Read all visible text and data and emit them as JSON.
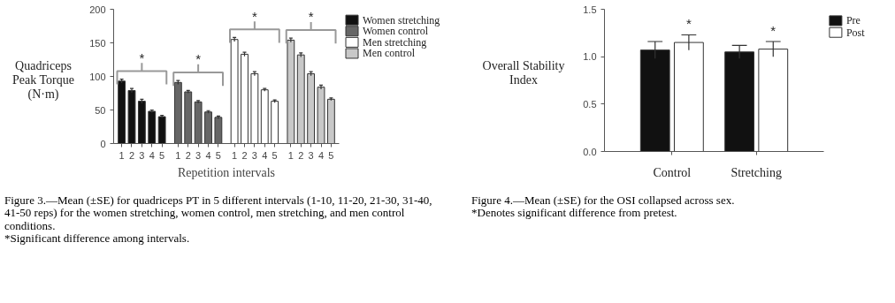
{
  "chart_data": [
    {
      "type": "bar",
      "title": "Figure 3.—Mean (±SE) for quadriceps PT in 5 different intervals (1-10, 11-20, 21-30, 31-40, 41-50 reps) for the women stretching, women control, men stretching, and men control conditions.",
      "subtitle": "*Significant difference among intervals.",
      "ylabel": "Quadriceps Peak Torque (N·m)",
      "xlabel": "Repetition intervals",
      "categories": [
        "1",
        "2",
        "3",
        "4",
        "5",
        "1",
        "2",
        "3",
        "4",
        "5",
        "1",
        "2",
        "3",
        "4",
        "5",
        "1",
        "2",
        "3",
        "4",
        "5"
      ],
      "series": [
        {
          "name": "Women stretching",
          "color": "#111111",
          "values": [
            93,
            79,
            63,
            48,
            40,
            null,
            null,
            null,
            null,
            null,
            null,
            null,
            null,
            null,
            null,
            null,
            null,
            null,
            null,
            null
          ],
          "errors": [
            3,
            3,
            3,
            2,
            2,
            null,
            null,
            null,
            null,
            null,
            null,
            null,
            null,
            null,
            null,
            null,
            null,
            null,
            null,
            null
          ]
        },
        {
          "name": "Women control",
          "color": "#666666",
          "values": [
            null,
            null,
            null,
            null,
            null,
            91,
            77,
            62,
            47,
            39,
            null,
            null,
            null,
            null,
            null,
            null,
            null,
            null,
            null,
            null
          ],
          "errors": [
            null,
            null,
            null,
            null,
            null,
            3,
            2,
            2,
            2,
            2,
            null,
            null,
            null,
            null,
            null,
            null,
            null,
            null,
            null,
            null
          ]
        },
        {
          "name": "Men stretching",
          "color": "#ffffff",
          "values": [
            null,
            null,
            null,
            null,
            null,
            null,
            null,
            null,
            null,
            null,
            155,
            133,
            104,
            80,
            63,
            null,
            null,
            null,
            null,
            null
          ],
          "errors": [
            null,
            null,
            null,
            null,
            null,
            null,
            null,
            null,
            null,
            null,
            3,
            3,
            3,
            2,
            2,
            null,
            null,
            null,
            null,
            null
          ]
        },
        {
          "name": "Men control",
          "color": "#c8c8c8",
          "values": [
            null,
            null,
            null,
            null,
            null,
            null,
            null,
            null,
            null,
            null,
            null,
            null,
            null,
            null,
            null,
            154,
            132,
            104,
            84,
            66
          ],
          "errors": [
            null,
            null,
            null,
            null,
            null,
            null,
            null,
            null,
            null,
            null,
            null,
            null,
            null,
            null,
            null,
            3,
            3,
            3,
            3,
            2
          ]
        }
      ],
      "ylim": [
        0,
        200
      ],
      "yticks": [
        0,
        50,
        100,
        150,
        200
      ],
      "grid": false,
      "legend": "top right",
      "annotations": [
        "*",
        "*",
        "*",
        "*"
      ]
    },
    {
      "type": "bar",
      "title": "Figure 4.—Mean (±SE) for the OSI collapsed across sex.",
      "subtitle": "*Denotes significant difference from pretest.",
      "ylabel": "Overall Stability Index",
      "categories": [
        "Control",
        "Stretching"
      ],
      "series": [
        {
          "name": "Pre",
          "color": "#111111",
          "values": [
            1.07,
            1.05
          ],
          "errors": [
            0.09,
            0.07
          ]
        },
        {
          "name": "Post",
          "color": "#ffffff",
          "values": [
            1.15,
            1.08
          ],
          "errors": [
            0.08,
            0.08
          ]
        }
      ],
      "ylim": [
        0,
        1.5
      ],
      "yticks": [
        {
          "value": 0,
          "label": "0.0"
        },
        {
          "value": 0.5,
          "label": "0.5"
        },
        {
          "value": 1.0,
          "label": "1.0"
        },
        {
          "value": 1.5,
          "label": "1.5"
        }
      ],
      "grid": false,
      "legend": "top right",
      "annotations": [
        "*",
        "*"
      ]
    }
  ]
}
